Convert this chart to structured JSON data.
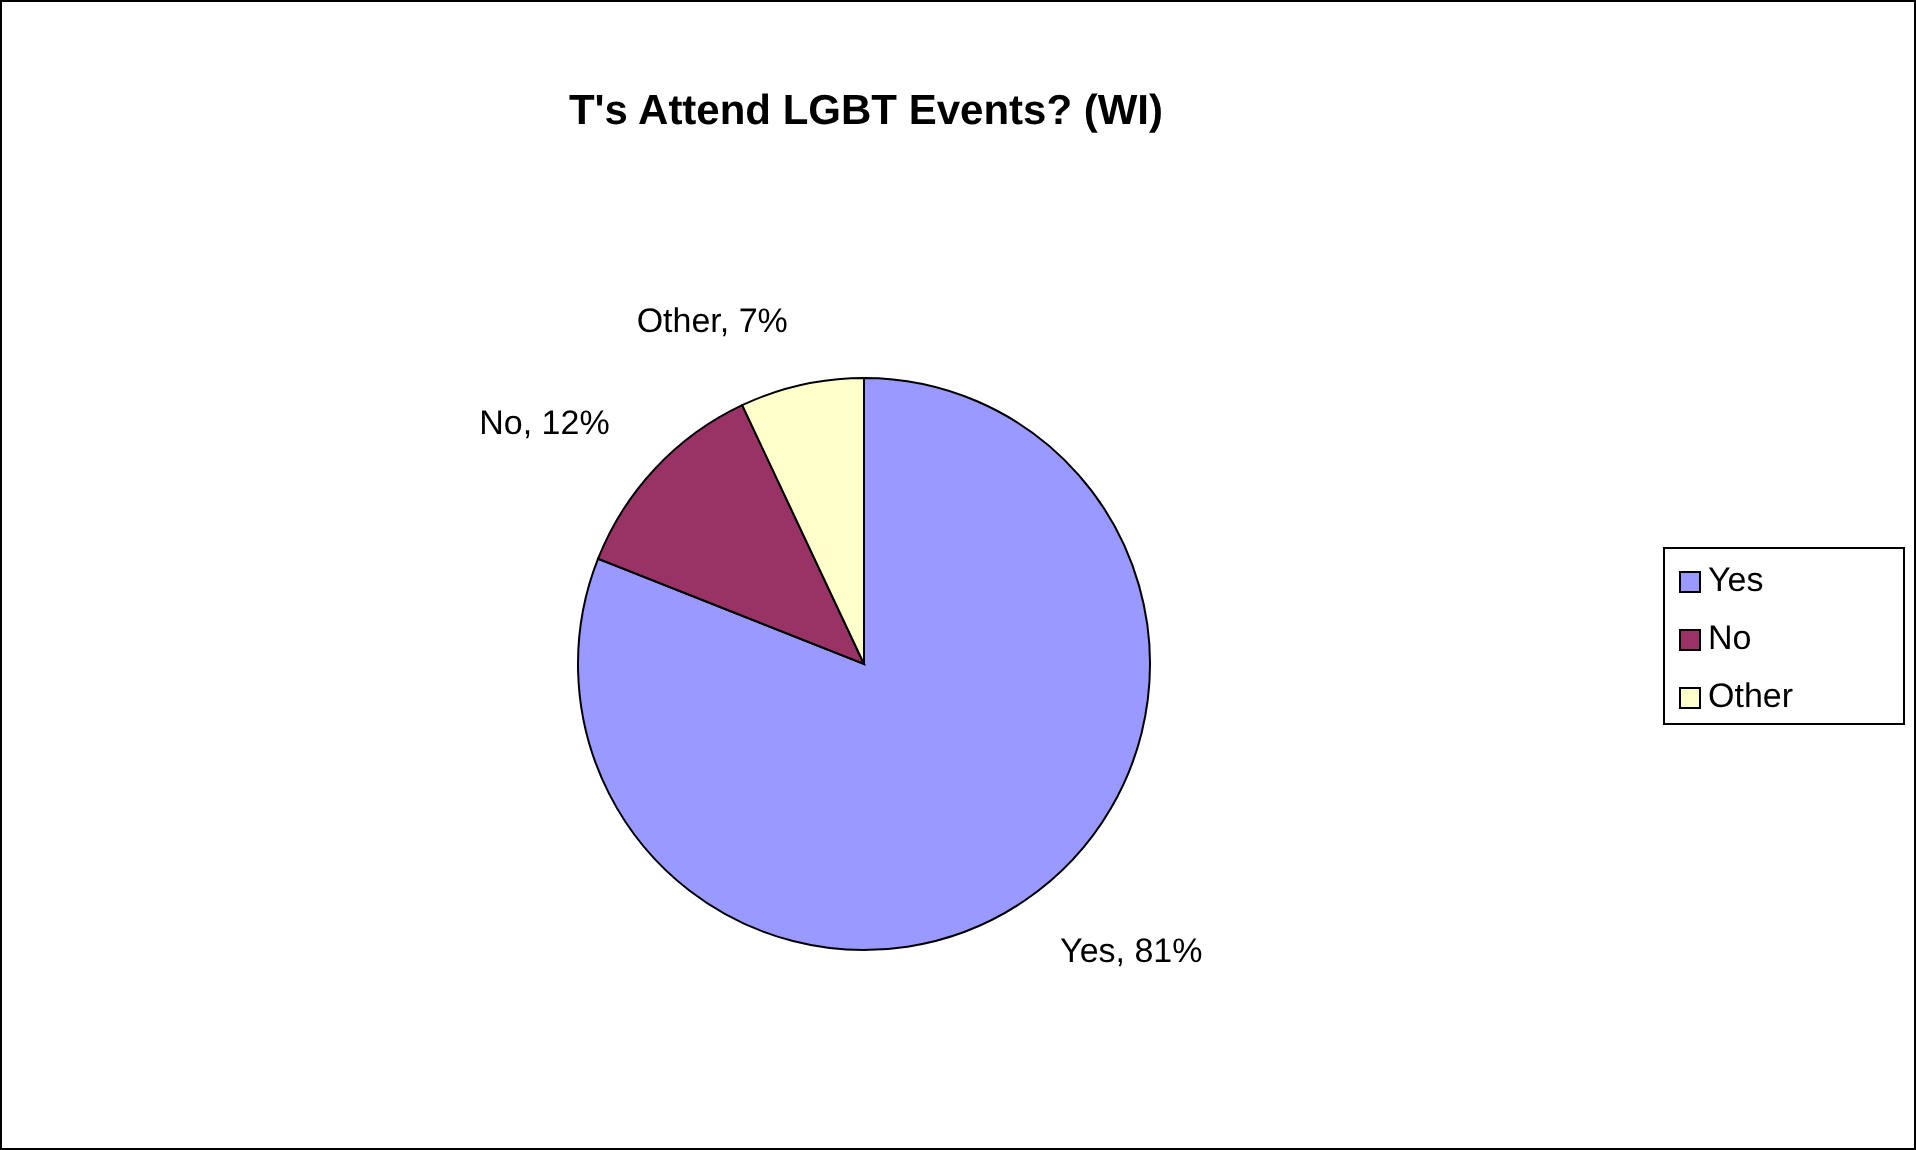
{
  "chart_data": {
    "type": "pie",
    "title": "T's Attend LGBT Events? (WI)",
    "categories": [
      "Yes",
      "No",
      "Other"
    ],
    "values": [
      81,
      12,
      7
    ],
    "colors": [
      "#9999ff",
      "#993366",
      "#ffffcc"
    ],
    "value_labels": [
      "Yes, 81%",
      "No, 12%",
      "Other, 7%"
    ],
    "legend": "right"
  }
}
